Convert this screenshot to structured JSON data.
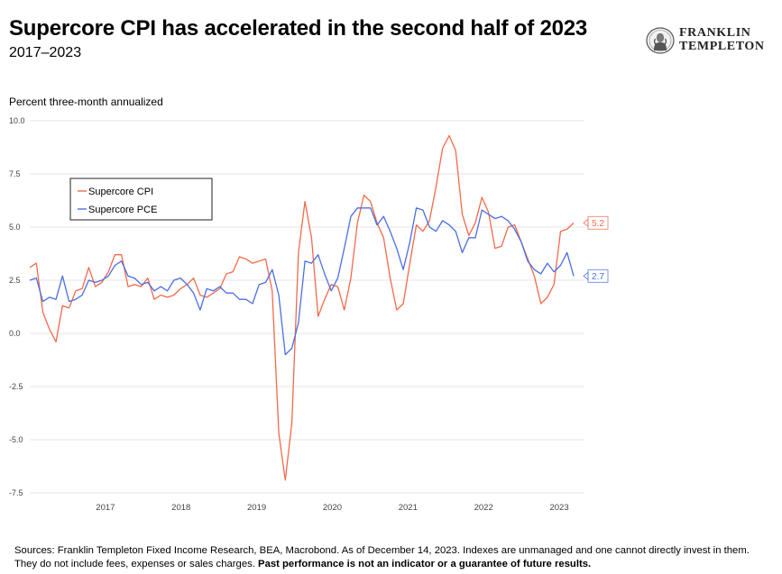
{
  "header": {
    "title": "Supercore CPI has accelerated in the second half of 2023",
    "subtitle": "2017–2023"
  },
  "logo": {
    "line1": "FRANKLIN",
    "line2": "TEMPLETON",
    "seal_icon": "benjamin-franklin-portrait-icon"
  },
  "footer": {
    "sources": "Sources: Franklin Templeton Fixed Income Research, BEA, Macrobond. As of December 14, 2023. Indexes are unmanaged and one cannot directly invest in them. They do not include fees, expenses or sales charges.",
    "disclaimer": "Past performance is not an indicator or a guarantee of future results."
  },
  "chart_data": {
    "type": "line",
    "ylabel": "Percent three-month annualized",
    "ylim": [
      -7.5,
      10.0
    ],
    "yticks": [
      10.0,
      7.5,
      5.0,
      2.5,
      0.0,
      -2.5,
      -5.0,
      -7.5
    ],
    "ytick_labels": [
      "10.0",
      "7.5",
      "5.0",
      "2.5",
      "0.0",
      "-2.5",
      "-5.0",
      "-7.5"
    ],
    "xticks": [
      "2017",
      "2018",
      "2019",
      "2020",
      "2021",
      "2022",
      "2023"
    ],
    "x_start": "2016-07",
    "x_end": "2023-11",
    "grid": true,
    "legend_position": "upper-left",
    "series": [
      {
        "name": "Supercore CPI",
        "color": "#f26a4b",
        "end_label": "5.2",
        "values": [
          3.1,
          3.3,
          1.0,
          0.2,
          -0.4,
          1.3,
          1.2,
          2.0,
          2.1,
          3.1,
          2.2,
          2.4,
          2.9,
          3.7,
          3.7,
          2.2,
          2.3,
          2.2,
          2.6,
          1.6,
          1.8,
          1.7,
          1.8,
          2.1,
          2.3,
          2.6,
          1.8,
          1.7,
          1.9,
          2.1,
          2.8,
          2.9,
          3.6,
          3.5,
          3.3,
          3.4,
          3.5,
          2.0,
          -4.7,
          -6.9,
          -4.2,
          3.8,
          6.2,
          4.5,
          0.8,
          1.6,
          2.3,
          2.2,
          1.1,
          2.6,
          5.2,
          6.5,
          6.2,
          5.2,
          4.5,
          2.6,
          1.1,
          1.4,
          3.3,
          5.1,
          4.8,
          5.3,
          6.9,
          8.7,
          9.3,
          8.6,
          5.6,
          4.6,
          5.2,
          6.4,
          5.7,
          4.0,
          4.1,
          5.0,
          5.1,
          4.3,
          3.5,
          2.7,
          1.4,
          1.7,
          2.3,
          4.8,
          4.9,
          5.2
        ]
      },
      {
        "name": "Supercore PCE",
        "color": "#4a6fe3",
        "end_label": "2.7",
        "values": [
          2.5,
          2.6,
          1.5,
          1.7,
          1.6,
          2.7,
          1.5,
          1.6,
          1.8,
          2.5,
          2.4,
          2.5,
          2.7,
          3.2,
          3.4,
          2.7,
          2.6,
          2.3,
          2.4,
          2.0,
          2.2,
          2.0,
          2.5,
          2.6,
          2.3,
          1.9,
          1.1,
          2.1,
          2.0,
          2.2,
          1.9,
          1.9,
          1.6,
          1.6,
          1.4,
          2.3,
          2.4,
          3.0,
          1.8,
          -1.0,
          -0.7,
          0.5,
          3.4,
          3.3,
          3.7,
          2.8,
          2.0,
          2.6,
          4.0,
          5.5,
          5.9,
          5.9,
          5.9,
          5.1,
          5.5,
          4.8,
          4.0,
          3.0,
          4.3,
          5.9,
          5.8,
          5.0,
          4.8,
          5.3,
          5.1,
          4.8,
          3.8,
          4.5,
          4.5,
          5.8,
          5.6,
          5.4,
          5.5,
          5.3,
          4.9,
          4.3,
          3.4,
          3.0,
          2.8,
          3.3,
          2.9,
          3.2,
          3.8,
          2.7
        ]
      }
    ]
  }
}
